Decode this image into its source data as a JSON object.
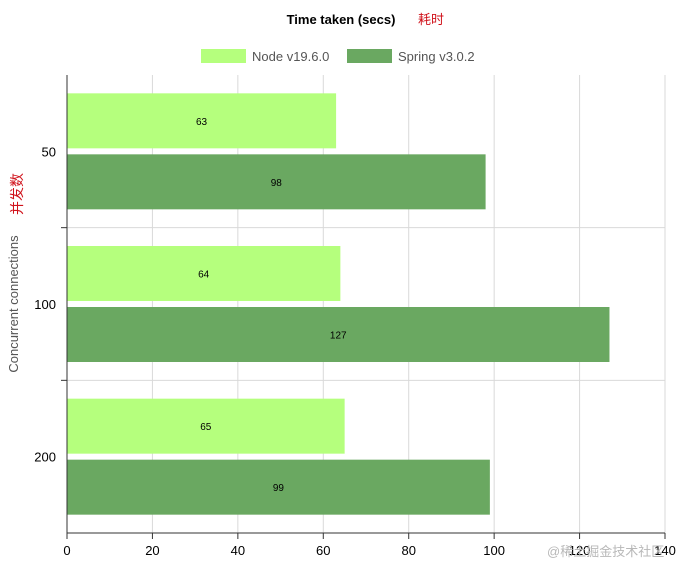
{
  "chart_data": {
    "type": "bar",
    "orientation": "horizontal",
    "title": "Time taken (secs)",
    "title_note": "耗时",
    "ylabel": "Concurrent connections",
    "ylabel_note": "并发数",
    "xlabel": "",
    "categories": [
      "50",
      "100",
      "200"
    ],
    "series": [
      {
        "name": "Node v19.6.0",
        "color": "#b5ff7d",
        "values": [
          63,
          64,
          65
        ]
      },
      {
        "name": "Spring v3.0.2",
        "color": "#6aa861",
        "values": [
          98,
          127,
          99
        ]
      }
    ],
    "xlim": [
      0,
      140
    ],
    "xticks": [
      0,
      20,
      40,
      60,
      80,
      100,
      120,
      140
    ],
    "grid": true,
    "legend": "top-center",
    "data_labels": true
  },
  "watermark": "@稀土掘金技术社区"
}
